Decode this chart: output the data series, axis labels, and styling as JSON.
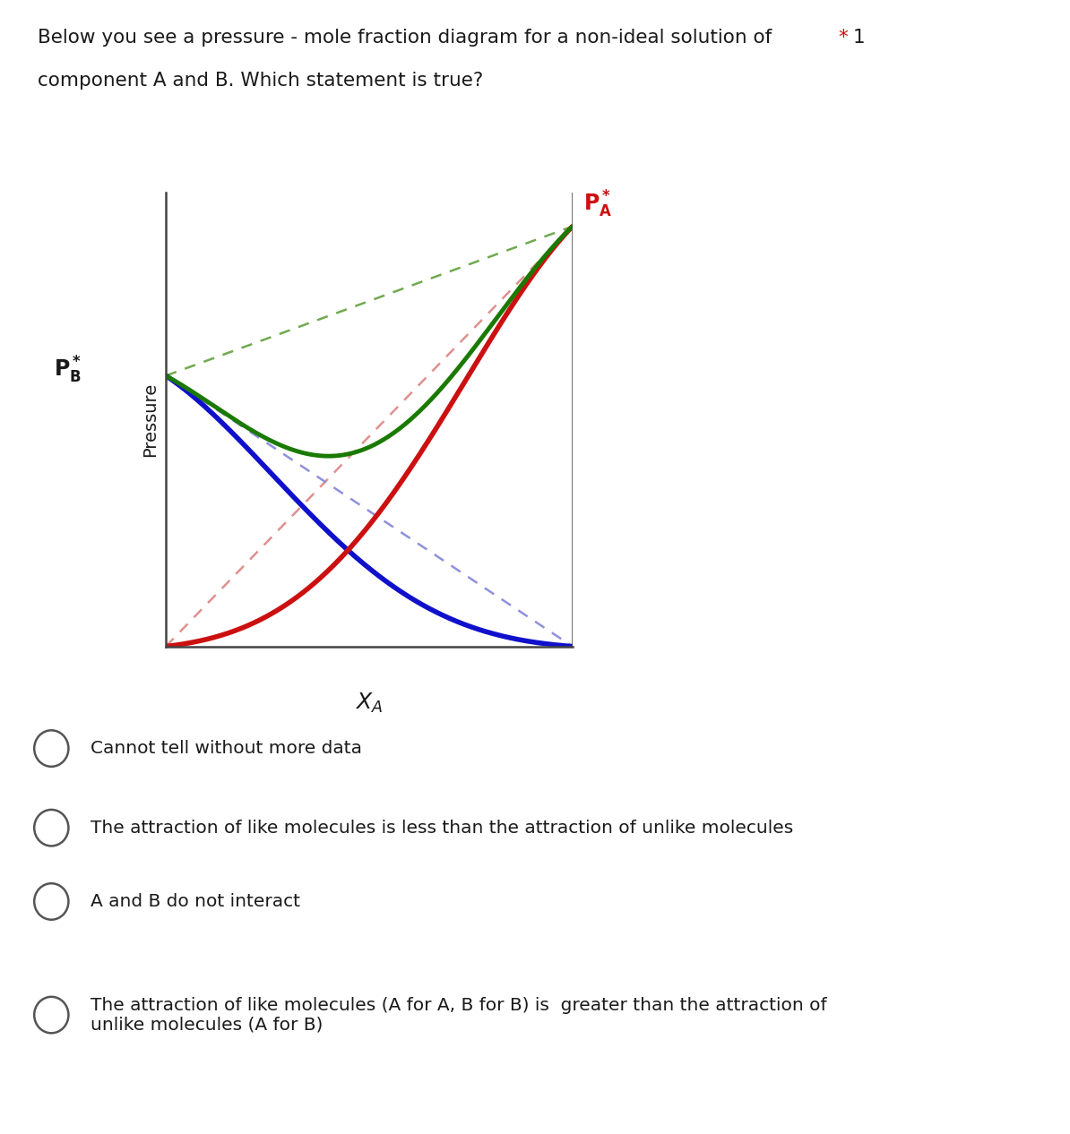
{
  "title_line1": "Below you see a pressure - mole fraction diagram for a non-ideal solution of",
  "title_star": "*",
  "title_num": "1",
  "title_line2": "component A and B. Which statement is true?",
  "ylabel": "Pressure",
  "xlabel_main": "X",
  "xlabel_sub": "A",
  "PA_star_label": "P",
  "PA_sub_label": "A",
  "PB_star_label": "P",
  "PB_sub_label": "B",
  "PA_value": 0.9,
  "PB_value": 0.58,
  "blue_color": "#1010cc",
  "red_color": "#cc1010",
  "green_color": "#1a7a00",
  "dashed_red_color": "#e09090",
  "dashed_blue_color": "#9090dd",
  "dashed_green_color": "#70aa50",
  "bg_color": "#ffffff",
  "text_color": "#1a1a1a",
  "star_color": "#cc1010",
  "margules_A": -2.2,
  "options": [
    "Cannot tell without more data",
    "The attraction of like molecules is less than the attraction of unlike molecules",
    "A and B do not interact",
    "The attraction of like molecules (A for A, B for B) is  greater than the attraction of\nunlike molecules (A for B)"
  ]
}
